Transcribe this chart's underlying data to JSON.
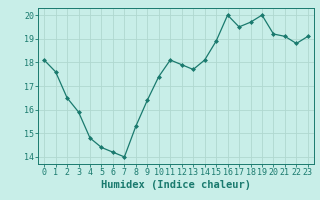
{
  "x": [
    0,
    1,
    2,
    3,
    4,
    5,
    6,
    7,
    8,
    9,
    10,
    11,
    12,
    13,
    14,
    15,
    16,
    17,
    18,
    19,
    20,
    21,
    22,
    23
  ],
  "y": [
    18.1,
    17.6,
    16.5,
    15.9,
    14.8,
    14.4,
    14.2,
    14.0,
    15.3,
    16.4,
    17.4,
    18.1,
    17.9,
    17.7,
    18.1,
    18.9,
    20.0,
    19.5,
    19.7,
    20.0,
    19.2,
    19.1,
    18.8,
    19.1
  ],
  "line_color": "#1a7a6e",
  "marker_color": "#1a7a6e",
  "bg_color": "#c8eee8",
  "grid_color": "#b0d8d0",
  "xlabel": "Humidex (Indice chaleur)",
  "ylim": [
    13.7,
    20.3
  ],
  "xlim": [
    -0.5,
    23.5
  ],
  "yticks": [
    14,
    15,
    16,
    17,
    18,
    19,
    20
  ],
  "xticks": [
    0,
    1,
    2,
    3,
    4,
    5,
    6,
    7,
    8,
    9,
    10,
    11,
    12,
    13,
    14,
    15,
    16,
    17,
    18,
    19,
    20,
    21,
    22,
    23
  ],
  "tick_color": "#1a7a6e",
  "label_fontsize": 7.5,
  "tick_fontsize": 6.0
}
